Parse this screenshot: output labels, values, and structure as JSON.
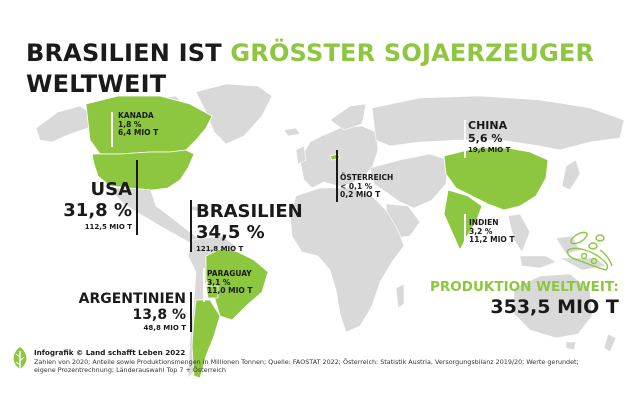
{
  "title": {
    "line1_black": "BRASILIEN IST",
    "line1_green": "GRÖSSTER SOJAERZEUGER",
    "line2": "WELTWEIT"
  },
  "colors": {
    "accent": "#8dc63f",
    "land": "#d9d9d9",
    "text": "#1a1a1a"
  },
  "countries": [
    {
      "name": "KANADA",
      "share": "1,8 %",
      "tonnes": "6,4 MIO T"
    },
    {
      "name": "USA",
      "share": "31,8 %",
      "tonnes": "112,5 MIO T"
    },
    {
      "name": "BRASILIEN",
      "share": "34,5 %",
      "tonnes": "121,8 MIO T"
    },
    {
      "name": "PARAGUAY",
      "share": "3,1 %",
      "tonnes": "11,0 MIO T"
    },
    {
      "name": "ARGENTINIEN",
      "share": "13,8 %",
      "tonnes": "48,8 MIO T"
    },
    {
      "name": "ÖSTERREICH",
      "share": "< 0,1 %",
      "tonnes": "0,2 MIO T"
    },
    {
      "name": "CHINA",
      "share": "5,6 %",
      "tonnes": "19,6 MIO T"
    },
    {
      "name": "INDIEN",
      "share": "3,2 %",
      "tonnes": "11,2 MIO T"
    }
  ],
  "total": {
    "label": "PRODUKTION WELTWEIT:",
    "value": "353,5 MIO T"
  },
  "footer": {
    "credit": "Infografik © Land schafft Leben 2022",
    "note_line1": "Zahlen von 2020; Anteile sowie Produktionsmengen in Millionen Tonnen; Quelle: FAOSTAT 2022; Österreich: Statistik Austria, Versorgungsbilanz 2019/20; Werte gerundet;",
    "note_line2": "eigene Prozentrechnung; Länderauswahl Top 7 + Österreich"
  },
  "icons": {
    "brand": "leaf-logo-icon",
    "soy": "soybean-pod-icon"
  }
}
